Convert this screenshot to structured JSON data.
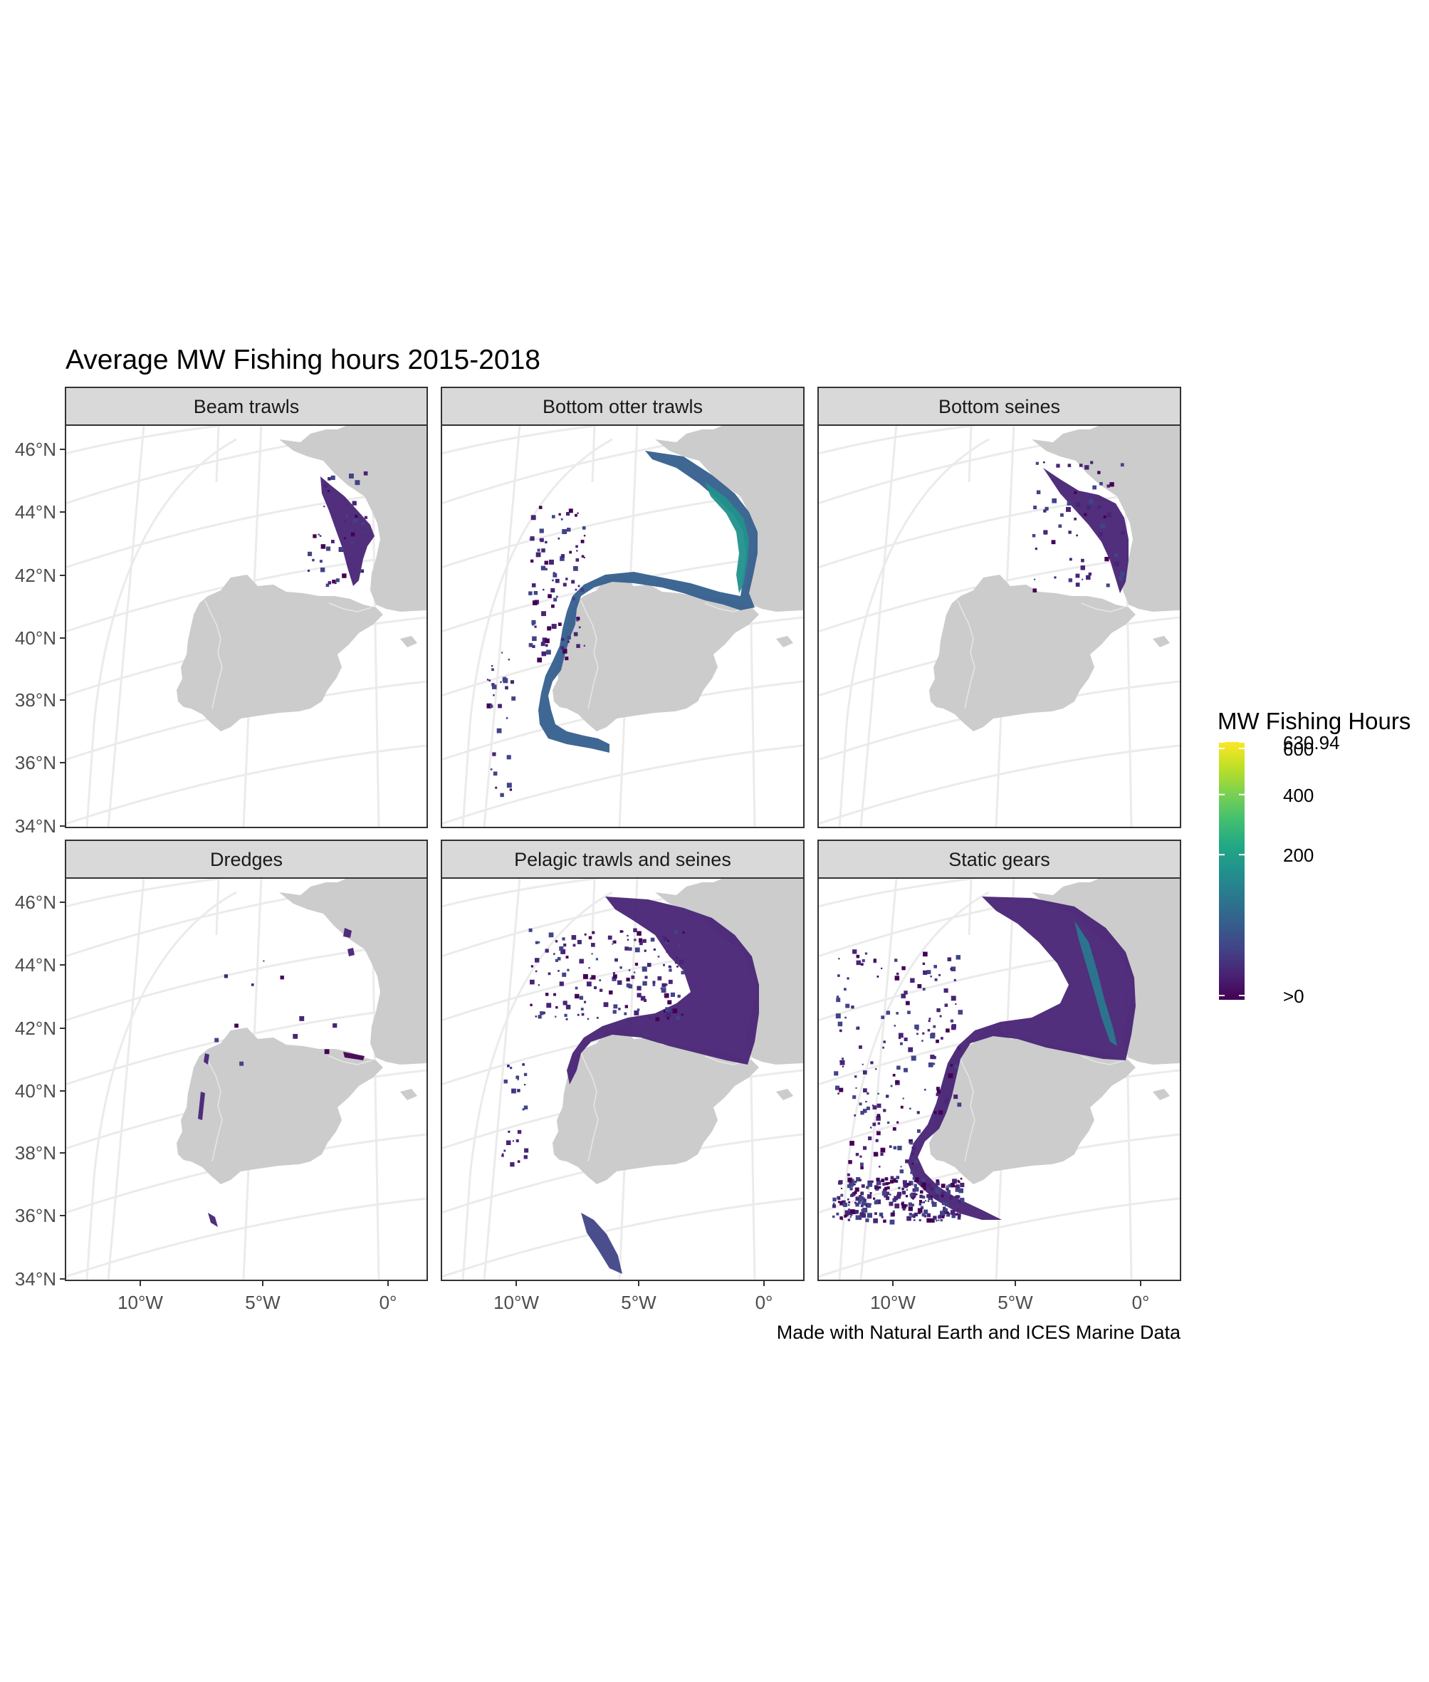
{
  "title": "Average MW Fishing hours 2015-2018",
  "caption": "Made with Natural Earth and ICES Marine Data",
  "legend": {
    "title": "MW Fishing Hours",
    "breaks": [
      ">0",
      "200",
      "400",
      "600",
      "630.94"
    ],
    "break_values": [
      0,
      200,
      400,
      600,
      630.94
    ],
    "max": 630.94,
    "colors": [
      "#440154",
      "#482475",
      "#414487",
      "#355f8d",
      "#2a788e",
      "#21918c",
      "#22a884",
      "#44bf70",
      "#7ad151",
      "#bddf26",
      "#fde725"
    ]
  },
  "axes": {
    "x_ticks": [
      "10°W",
      "5°W",
      "0°"
    ],
    "x_values": [
      -10,
      -5,
      0
    ],
    "y_ticks": [
      "46°N",
      "44°N",
      "42°N",
      "40°N",
      "38°N",
      "36°N",
      "34°N"
    ],
    "y_values": [
      46,
      44,
      42,
      40,
      38,
      36,
      34
    ]
  },
  "panels": [
    {
      "label": "Beam trawls",
      "intensity": "low"
    },
    {
      "label": "Bottom otter trawls",
      "intensity": "high"
    },
    {
      "label": "Bottom seines",
      "intensity": "low"
    },
    {
      "label": "Dredges",
      "intensity": "very-low"
    },
    {
      "label": "Pelagic trawls and seines",
      "intensity": "medium"
    },
    {
      "label": "Static gears",
      "intensity": "medium"
    }
  ],
  "colors": {
    "land": "#cccccc",
    "graticule": "#ebebeb",
    "strip": "#d9d9d9"
  }
}
